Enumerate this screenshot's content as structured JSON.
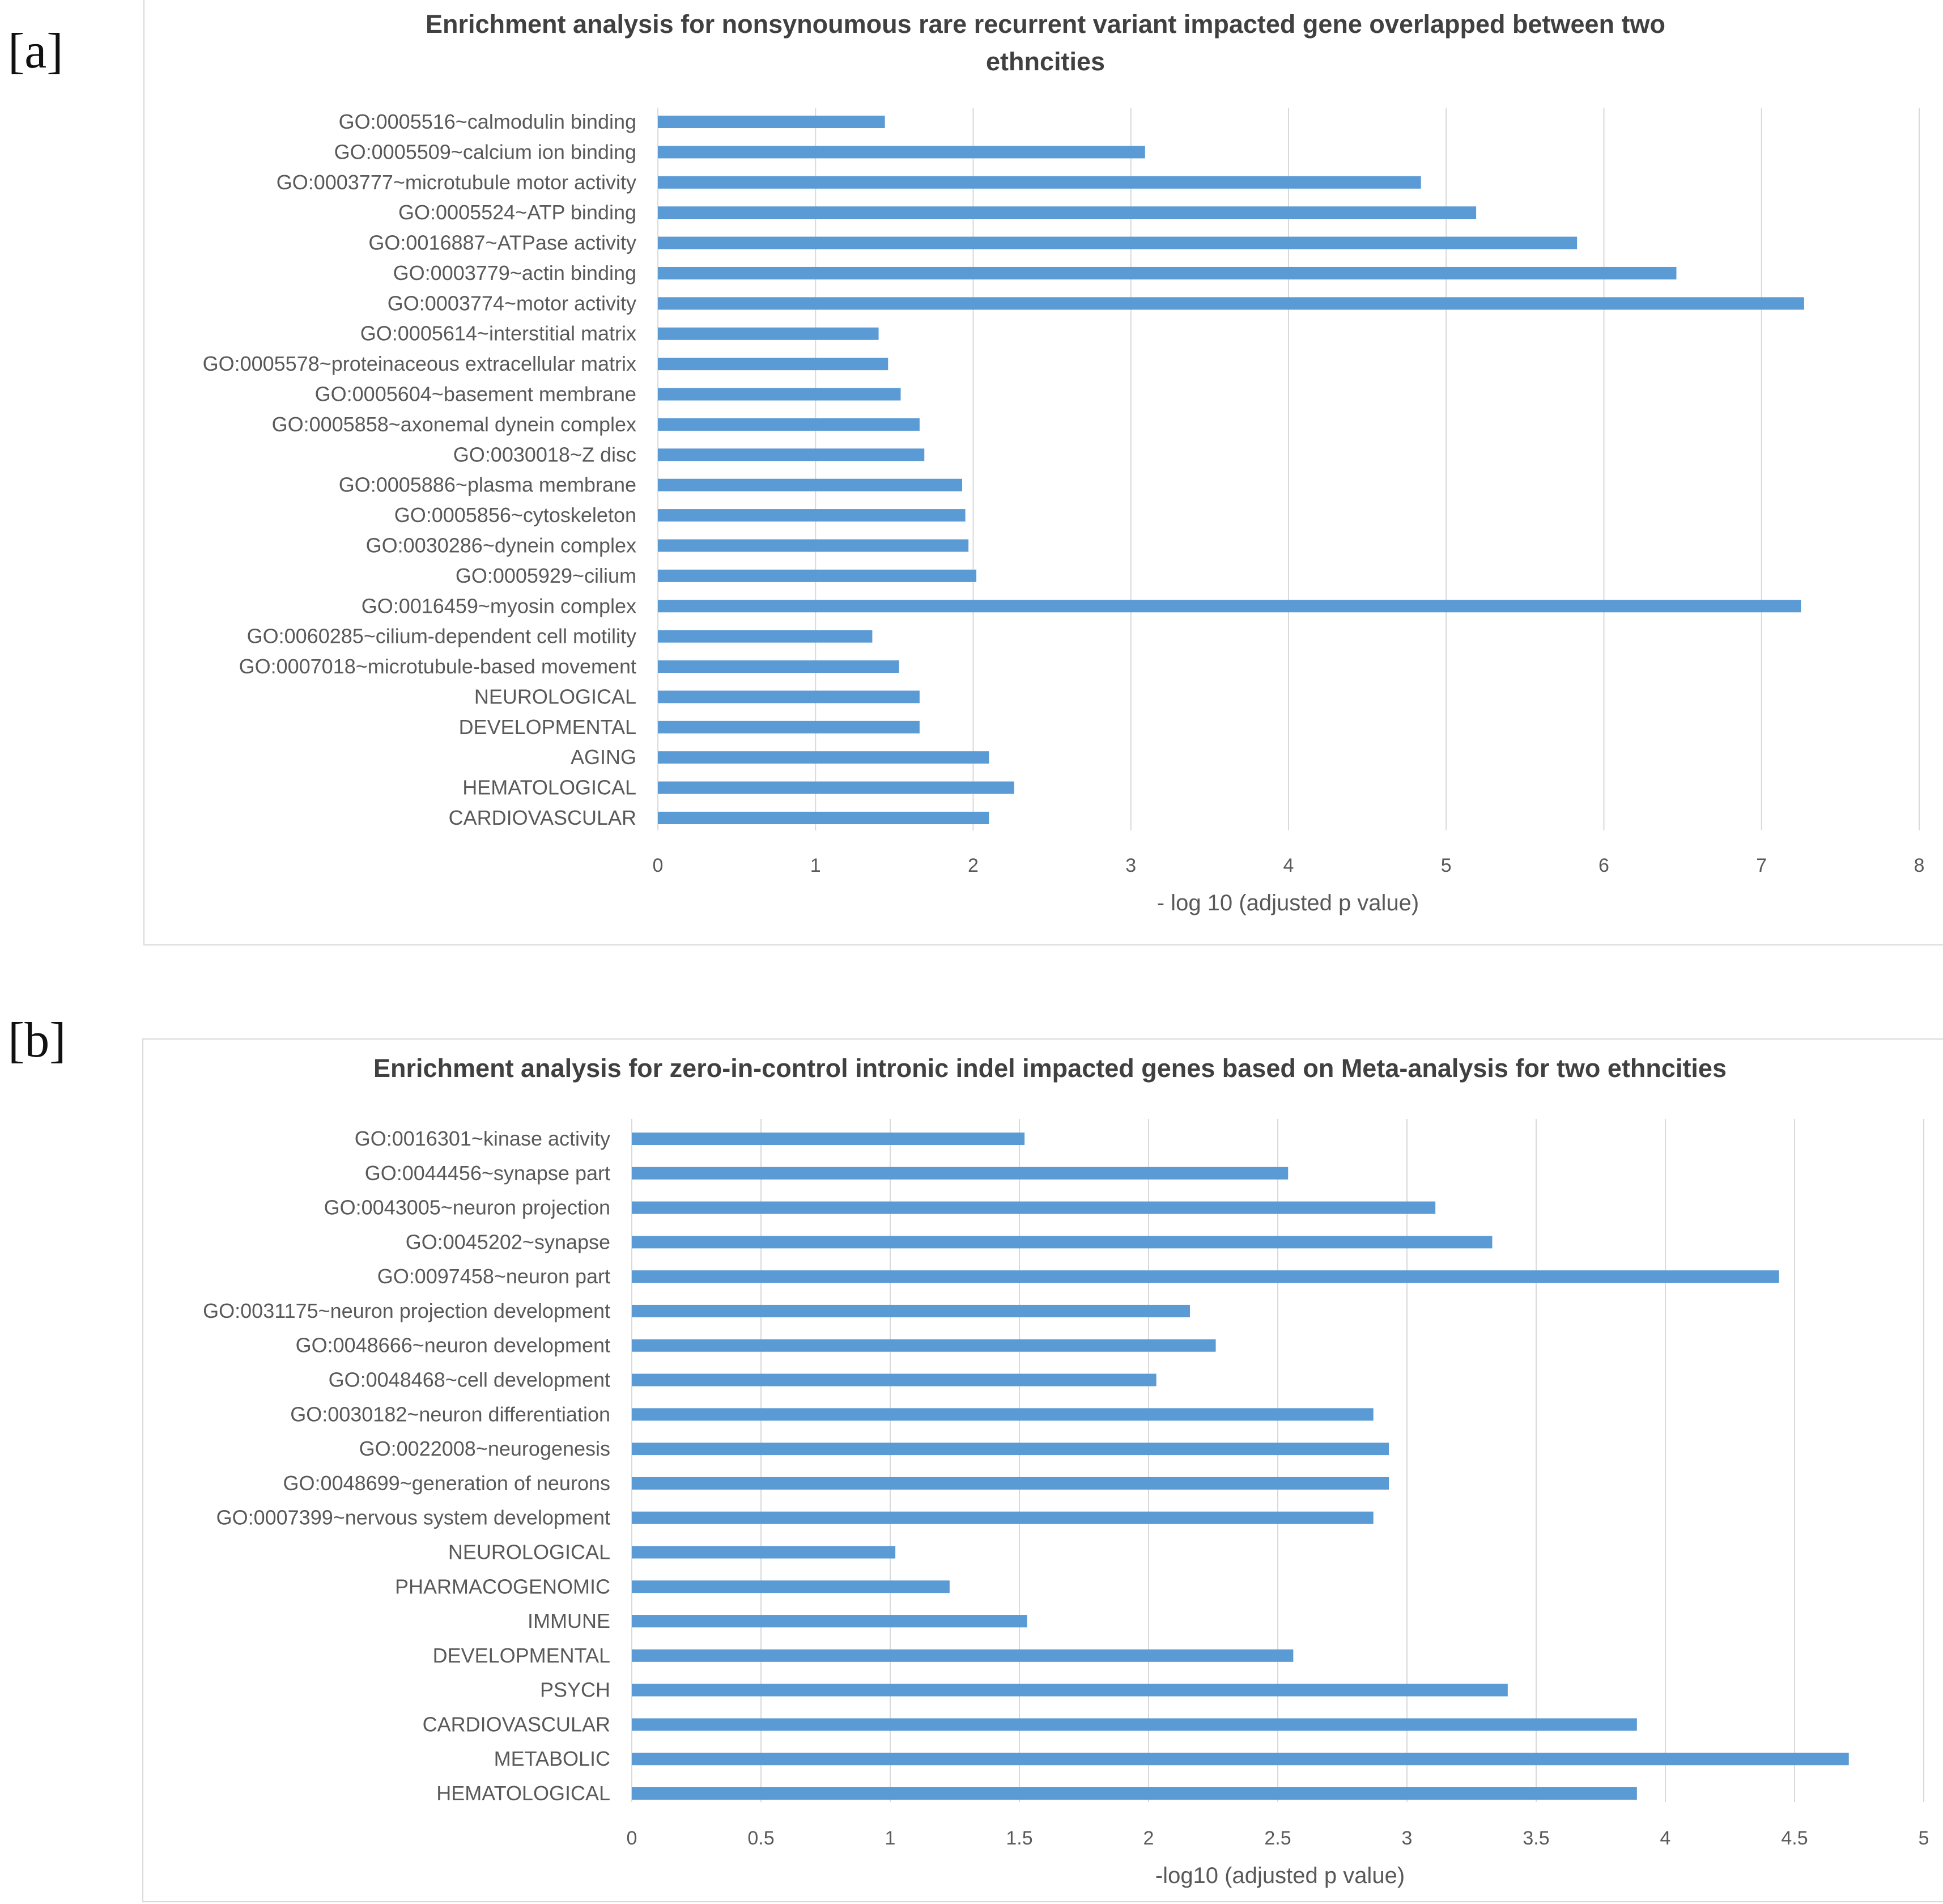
{
  "panels": [
    {
      "tag": "[a]"
    },
    {
      "tag": "[b]"
    }
  ],
  "chart_data": [
    {
      "type": "bar",
      "orientation": "horizontal",
      "title_lines": [
        "Enrichment analysis for nonsynoumous rare recurrent variant impacted gene overlapped between two",
        "ethncities"
      ],
      "xlabel": "- log 10 (adjusted p value)",
      "ylabel": "",
      "xlim": [
        0,
        8
      ],
      "xticks": [
        "0",
        "1",
        "2",
        "3",
        "4",
        "5",
        "6",
        "7",
        "8"
      ],
      "grid": true,
      "bar_color": "#5b9bd5",
      "categories": [
        "GO:0005516~calmodulin binding",
        "GO:0005509~calcium ion binding",
        "GO:0003777~microtubule motor activity",
        "GO:0005524~ATP binding",
        "GO:0016887~ATPase activity",
        "GO:0003779~actin binding",
        "GO:0003774~motor activity",
        "GO:0005614~interstitial matrix",
        "GO:0005578~proteinaceous extracellular matrix",
        "GO:0005604~basement membrane",
        "GO:0005858~axonemal dynein complex",
        "GO:0030018~Z disc",
        "GO:0005886~plasma membrane",
        "GO:0005856~cytoskeleton",
        "GO:0030286~dynein complex",
        "GO:0005929~cilium",
        "GO:0016459~myosin complex",
        "GO:0060285~cilium-dependent cell motility",
        "GO:0007018~microtubule-based movement",
        "NEUROLOGICAL",
        "DEVELOPMENTAL",
        "AGING",
        "HEMATOLOGICAL",
        "CARDIOVASCULAR"
      ],
      "values": [
        1.44,
        3.09,
        4.84,
        5.19,
        5.83,
        6.46,
        7.27,
        1.4,
        1.46,
        1.54,
        1.66,
        1.69,
        1.93,
        1.95,
        1.97,
        2.02,
        7.25,
        1.36,
        1.53,
        1.66,
        1.66,
        2.1,
        2.26,
        2.1
      ]
    },
    {
      "type": "bar",
      "orientation": "horizontal",
      "title_lines": [
        "Enrichment analysis for zero-in-control intronic indel impacted genes based on Meta-analysis for two ethncities"
      ],
      "xlabel": "-log10 (adjusted p value)",
      "ylabel": "",
      "xlim": [
        0,
        5
      ],
      "xticks": [
        "0",
        "0.5",
        "1",
        "1.5",
        "2",
        "2.5",
        "3",
        "3.5",
        "4",
        "4.5",
        "5"
      ],
      "grid": true,
      "bar_color": "#5b9bd5",
      "categories": [
        "GO:0016301~kinase activity",
        "GO:0044456~synapse part",
        "GO:0043005~neuron projection",
        "GO:0045202~synapse",
        "GO:0097458~neuron part",
        "GO:0031175~neuron projection development",
        "GO:0048666~neuron development",
        "GO:0048468~cell development",
        "GO:0030182~neuron differentiation",
        "GO:0022008~neurogenesis",
        "GO:0048699~generation of neurons",
        "GO:0007399~nervous system development",
        "NEUROLOGICAL",
        "PHARMACOGENOMIC",
        "IMMUNE",
        "DEVELOPMENTAL",
        "PSYCH",
        "CARDIOVASCULAR",
        "METABOLIC",
        "HEMATOLOGICAL"
      ],
      "values": [
        1.52,
        2.54,
        3.11,
        3.33,
        4.44,
        2.16,
        2.26,
        2.03,
        2.87,
        2.93,
        2.93,
        2.87,
        1.02,
        1.23,
        1.53,
        2.56,
        3.39,
        3.89,
        4.71,
        3.89
      ]
    }
  ]
}
